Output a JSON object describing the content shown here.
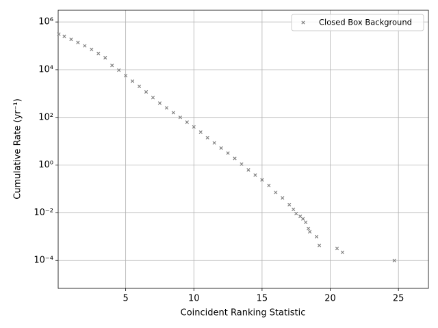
{
  "chart_data": {
    "type": "scatter",
    "xlabel": "Coincident Ranking Statistic",
    "ylabel": "Cumulative Rate (yr⁻¹)",
    "yscale": "log",
    "grid": true,
    "legend_loc": "upper right",
    "xlim": [
      0.05,
      27.2
    ],
    "ylim": [
      6.8e-06,
      3100000
    ],
    "xticks": [
      5,
      10,
      15,
      20,
      25
    ],
    "yticks": [
      {
        "value": 0.0001,
        "label": "10⁻⁴"
      },
      {
        "value": 0.01,
        "label": "10⁻²"
      },
      {
        "value": 1,
        "label": "10⁰"
      },
      {
        "value": 100,
        "label": "10²"
      },
      {
        "value": 10000,
        "label": "10⁴"
      },
      {
        "value": 1000000,
        "label": "10⁶"
      }
    ],
    "series": [
      {
        "name": "Closed Box Background",
        "color": "#808080",
        "x": [
          0.1,
          0.5,
          1,
          1.5,
          2,
          2.5,
          3,
          3.5,
          4,
          4.5,
          5,
          5.5,
          6,
          6.5,
          7,
          7.5,
          8,
          8.5,
          9,
          9.5,
          10,
          10.5,
          11,
          11.5,
          12,
          12.5,
          13,
          13.5,
          14,
          14.5,
          15,
          15.5,
          16,
          16.5,
          17,
          17.3,
          17.5,
          17.8,
          18,
          18.2,
          18.4,
          18.5,
          19,
          19.2,
          20.5,
          20.9,
          24.7
        ],
        "values": [
          309000,
          251000,
          186000,
          138000,
          100000,
          70800,
          47900,
          31600,
          15100,
          9550,
          5620,
          3310,
          2000,
          1170,
          676,
          398,
          251,
          158,
          100,
          63,
          40,
          24,
          14.1,
          8.5,
          5.2,
          3.2,
          1.9,
          1.1,
          0.63,
          0.38,
          0.24,
          0.14,
          0.071,
          0.042,
          0.022,
          0.014,
          0.0093,
          0.0071,
          0.0056,
          0.004,
          0.0022,
          0.0016,
          0.001,
          0.00043,
          0.00032,
          0.00022,
          0.0001
        ]
      }
    ]
  }
}
